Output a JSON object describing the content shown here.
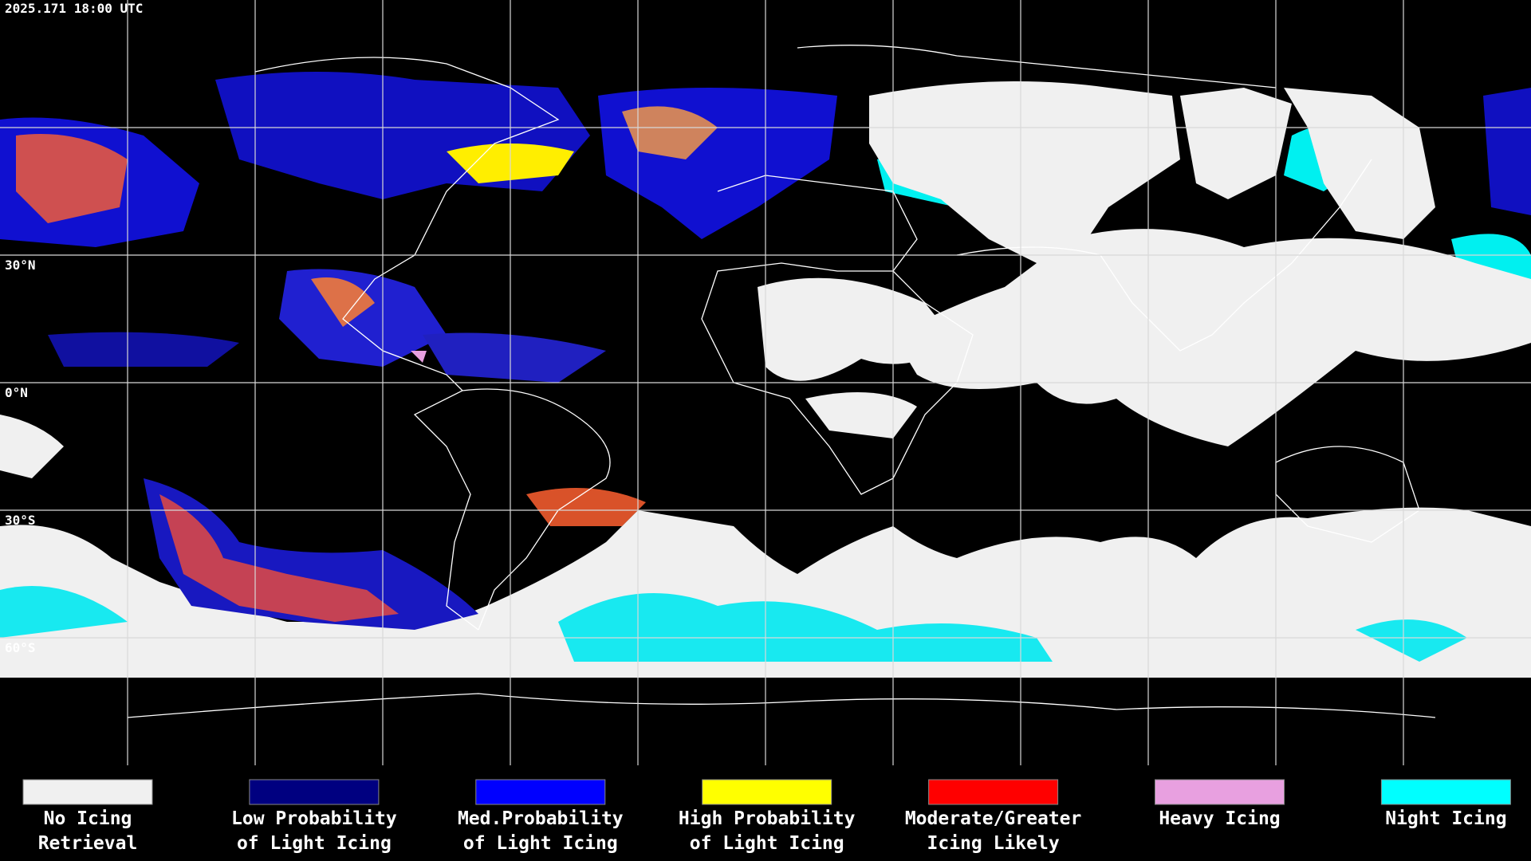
{
  "timestamp": "2025.171 18:00 UTC",
  "latitude_labels": [
    "30°N",
    "0°N",
    "30°S",
    "60°S"
  ],
  "legend": [
    {
      "lines": [
        "No Icing",
        "Retrieval"
      ],
      "color": "#f0f0f0"
    },
    {
      "lines": [
        "Low Probability",
        "of Light Icing"
      ],
      "color": "#000080"
    },
    {
      "lines": [
        "Med.Probability",
        "of Light Icing"
      ],
      "color": "#0000ff"
    },
    {
      "lines": [
        "High Probability",
        "of Light Icing"
      ],
      "color": "#ffff00"
    },
    {
      "lines": [
        "Moderate/Greater",
        "Icing Likely"
      ],
      "color": "#ff0000"
    },
    {
      "lines": [
        "Heavy Icing"
      ],
      "color": "#e8a0e0"
    },
    {
      "lines": [
        "Night Icing"
      ],
      "color": "#00ffff"
    }
  ]
}
